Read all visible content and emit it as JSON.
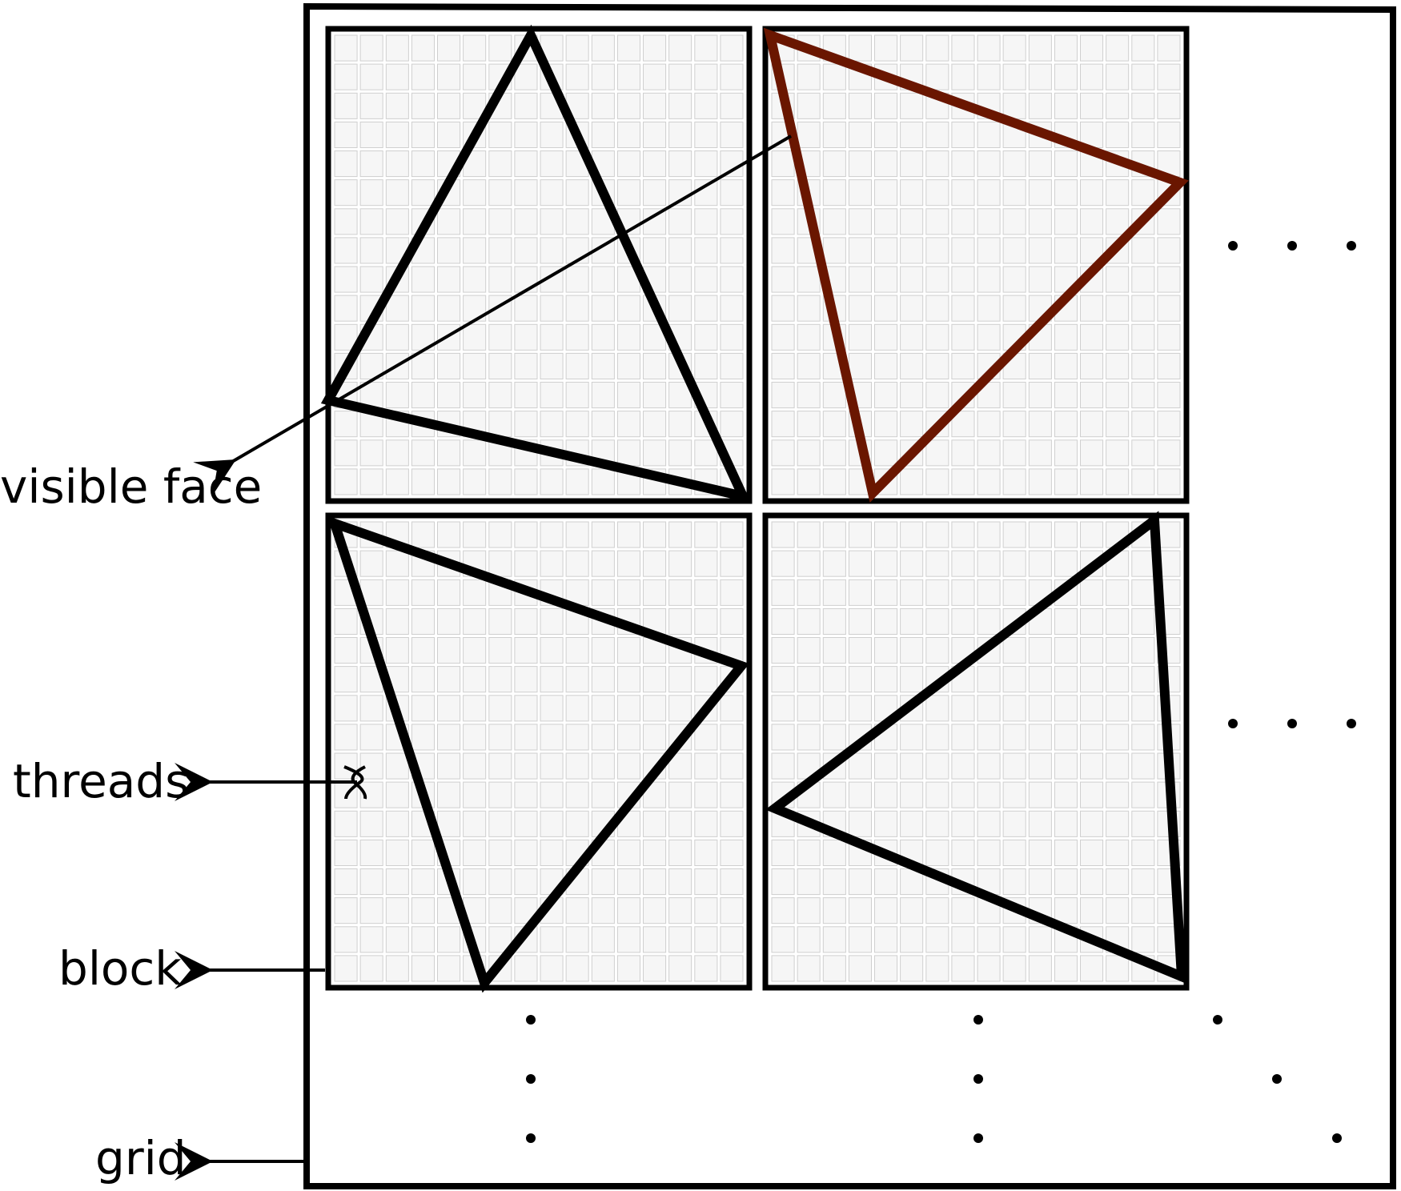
{
  "labels": {
    "visible_face": "visible face",
    "threads": "threads",
    "block": "block",
    "grid": "grid"
  },
  "colors": {
    "outline": "#000000",
    "highlight_triangle": "#6a1600",
    "cell_fill": "#f6f6f6",
    "cell_stroke": "#cfcfcf"
  },
  "structure": {
    "blocks_shown": 4,
    "threads_per_block_side": 16,
    "triangles_per_block": 1,
    "highlighted_triangle": "top-right block",
    "ellipsis": "dots indicate more blocks to the right and below"
  }
}
